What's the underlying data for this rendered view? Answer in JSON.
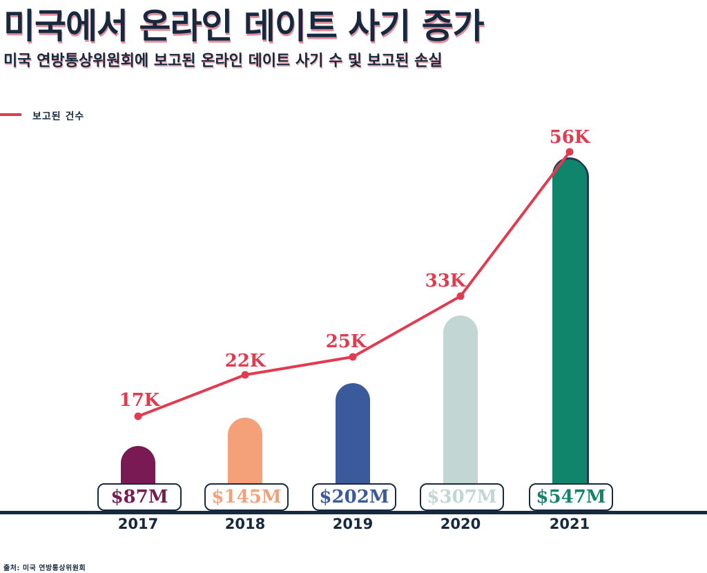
{
  "header": {
    "title": "미국에서 온라인 데이트 사기 증가",
    "subtitle": "미국 연방통상위원회에 보고된 온라인 데이트 사기 수 및 보고된 손실"
  },
  "legend": {
    "label": "보고된 건수"
  },
  "source": "출처: 미국 연방통상위원회",
  "colors": {
    "navy": "#16293f",
    "red": "#e23b50",
    "bars": [
      "#7a1a54",
      "#f4a17a",
      "#3a5a9b",
      "#c2d6d4",
      "#10856c"
    ]
  },
  "chart_data": {
    "type": "bar+line",
    "categories": [
      "2017",
      "2018",
      "2019",
      "2020",
      "2021"
    ],
    "series": [
      {
        "name": "보고된 손실",
        "values": [
          87,
          145,
          202,
          307,
          547
        ],
        "labels": [
          "$87M",
          "$145M",
          "$202M",
          "$307M",
          "$547M"
        ]
      },
      {
        "name": "보고된 건수",
        "values": [
          17000,
          22000,
          25000,
          33000,
          56000
        ],
        "labels": [
          "17K",
          "22K",
          "25K",
          "33K",
          "56K"
        ]
      }
    ],
    "legend_position": "top-left",
    "grid": false
  }
}
